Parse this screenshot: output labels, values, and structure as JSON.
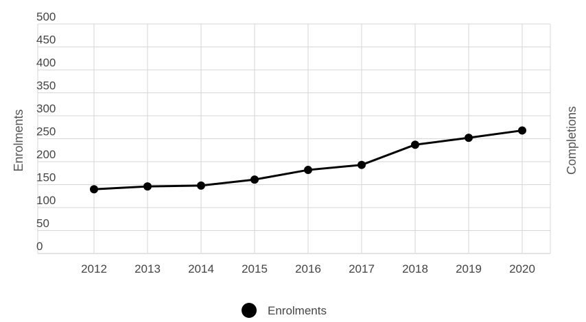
{
  "chart_data": {
    "type": "line",
    "categories": [
      "2012",
      "2013",
      "2014",
      "2015",
      "2016",
      "2017",
      "2018",
      "2019",
      "2020"
    ],
    "series": [
      {
        "name": "Enrolments",
        "values": [
          140,
          146,
          148,
          161,
          182,
          193,
          237,
          252,
          268
        ],
        "color": "#000000"
      }
    ],
    "y_ticks": [
      "500",
      "450",
      "400",
      "350",
      "300",
      "250",
      "200",
      "150",
      "100",
      "50",
      "0"
    ],
    "ylabel": "Enrolments",
    "ylabel_right": "Completions",
    "ylim": [
      0,
      500
    ],
    "grid": true,
    "legend": {
      "position": "bottom",
      "entries": [
        "Enrolments"
      ]
    }
  }
}
